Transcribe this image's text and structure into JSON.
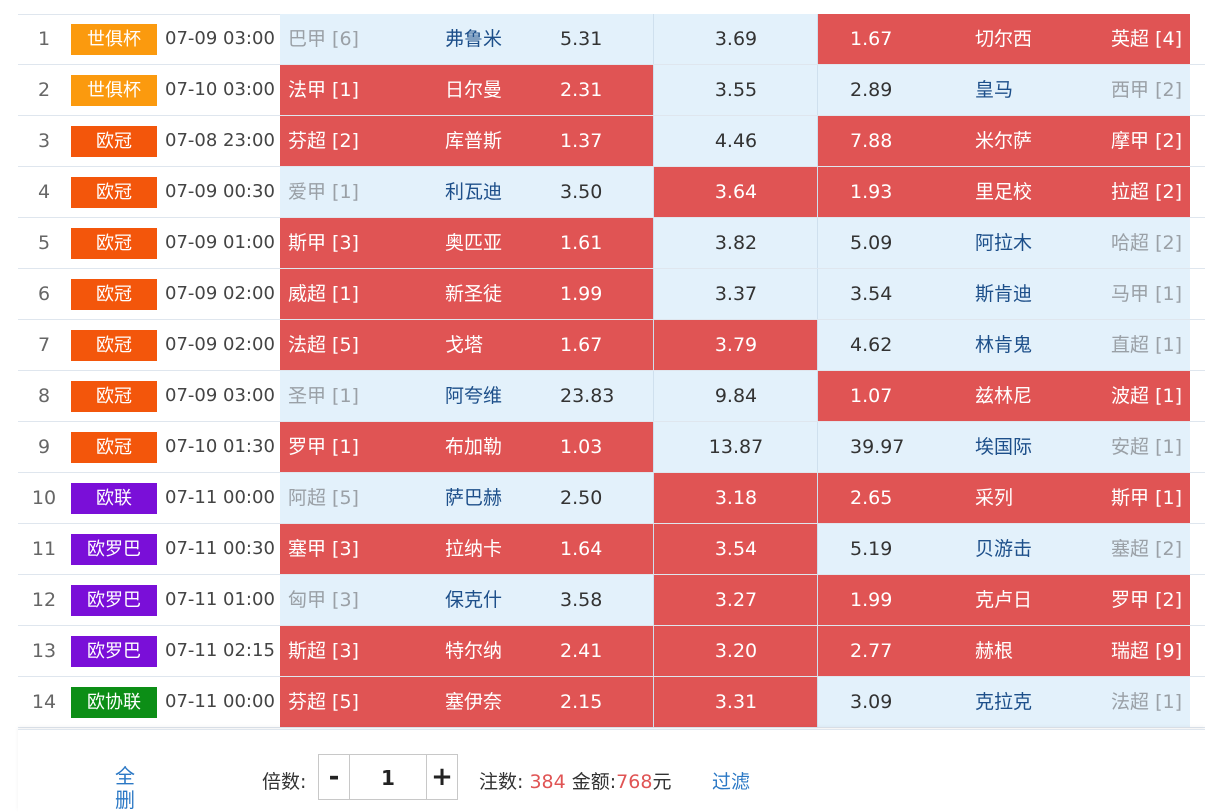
{
  "rows": [
    {
      "num": "1",
      "comp": "世俱杯",
      "comp_color": "#fb9a0e",
      "time": "07-09 03:00",
      "home_league": "巴甲 [6]",
      "home_team": "弗鲁米",
      "home_odds": "5.31",
      "draw_odds": "3.69",
      "away_odds": "1.67",
      "away_team": "切尔西",
      "away_league": "英超 [4]",
      "z1": "light",
      "z2": "light",
      "z3": "red"
    },
    {
      "num": "2",
      "comp": "世俱杯",
      "comp_color": "#fb9a0e",
      "time": "07-10 03:00",
      "home_league": "法甲 [1]",
      "home_team": "日尔曼",
      "home_odds": "2.31",
      "draw_odds": "3.55",
      "away_odds": "2.89",
      "away_team": "皇马",
      "away_league": "西甲 [2]",
      "z1": "red",
      "z2": "light",
      "z3": "light"
    },
    {
      "num": "3",
      "comp": "欧冠",
      "comp_color": "#f3560b",
      "time": "07-08 23:00",
      "home_league": "芬超 [2]",
      "home_team": "库普斯",
      "home_odds": "1.37",
      "draw_odds": "4.46",
      "away_odds": "7.88",
      "away_team": "米尔萨",
      "away_league": "摩甲 [2]",
      "z1": "red",
      "z2": "light",
      "z3": "red"
    },
    {
      "num": "4",
      "comp": "欧冠",
      "comp_color": "#f3560b",
      "time": "07-09 00:30",
      "home_league": "爱甲 [1]",
      "home_team": "利瓦迪",
      "home_odds": "3.50",
      "draw_odds": "3.64",
      "away_odds": "1.93",
      "away_team": "里足校",
      "away_league": "拉超 [2]",
      "z1": "light",
      "z2": "red",
      "z3": "red"
    },
    {
      "num": "5",
      "comp": "欧冠",
      "comp_color": "#f3560b",
      "time": "07-09 01:00",
      "home_league": "斯甲 [3]",
      "home_team": "奥匹亚",
      "home_odds": "1.61",
      "draw_odds": "3.82",
      "away_odds": "5.09",
      "away_team": "阿拉木",
      "away_league": "哈超 [2]",
      "z1": "red",
      "z2": "light",
      "z3": "light"
    },
    {
      "num": "6",
      "comp": "欧冠",
      "comp_color": "#f3560b",
      "time": "07-09 02:00",
      "home_league": "威超 [1]",
      "home_team": "新圣徒",
      "home_odds": "1.99",
      "draw_odds": "3.37",
      "away_odds": "3.54",
      "away_team": "斯肯迪",
      "away_league": "马甲 [1]",
      "z1": "red",
      "z2": "light",
      "z3": "light"
    },
    {
      "num": "7",
      "comp": "欧冠",
      "comp_color": "#f3560b",
      "time": "07-09 02:00",
      "home_league": "法超 [5]",
      "home_team": "戈塔",
      "home_odds": "1.67",
      "draw_odds": "3.79",
      "away_odds": "4.62",
      "away_team": "林肯鬼",
      "away_league": "直超 [1]",
      "z1": "red",
      "z2": "red",
      "z3": "light"
    },
    {
      "num": "8",
      "comp": "欧冠",
      "comp_color": "#f3560b",
      "time": "07-09 03:00",
      "home_league": "圣甲 [1]",
      "home_team": "阿夸维",
      "home_odds": "23.83",
      "draw_odds": "9.84",
      "away_odds": "1.07",
      "away_team": "兹林尼",
      "away_league": "波超 [1]",
      "z1": "light",
      "z2": "light",
      "z3": "red"
    },
    {
      "num": "9",
      "comp": "欧冠",
      "comp_color": "#f3560b",
      "time": "07-10 01:30",
      "home_league": "罗甲 [1]",
      "home_team": "布加勒",
      "home_odds": "1.03",
      "draw_odds": "13.87",
      "away_odds": "39.97",
      "away_team": "埃国际",
      "away_league": "安超 [1]",
      "z1": "red",
      "z2": "light",
      "z3": "light"
    },
    {
      "num": "10",
      "comp": "欧联",
      "comp_color": "#7a0fd8",
      "time": "07-11 00:00",
      "home_league": "阿超 [5]",
      "home_team": "萨巴赫",
      "home_odds": "2.50",
      "draw_odds": "3.18",
      "away_odds": "2.65",
      "away_team": "采列",
      "away_league": "斯甲 [1]",
      "z1": "light",
      "z2": "red",
      "z3": "red"
    },
    {
      "num": "11",
      "comp": "欧罗巴",
      "comp_color": "#7a0fd8",
      "time": "07-11 00:30",
      "home_league": "塞甲 [3]",
      "home_team": "拉纳卡",
      "home_odds": "1.64",
      "draw_odds": "3.54",
      "away_odds": "5.19",
      "away_team": "贝游击",
      "away_league": "塞超 [2]",
      "z1": "red",
      "z2": "red",
      "z3": "light"
    },
    {
      "num": "12",
      "comp": "欧罗巴",
      "comp_color": "#7a0fd8",
      "time": "07-11 01:00",
      "home_league": "匈甲 [3]",
      "home_team": "保克什",
      "home_odds": "3.58",
      "draw_odds": "3.27",
      "away_odds": "1.99",
      "away_team": "克卢日",
      "away_league": "罗甲 [2]",
      "z1": "light",
      "z2": "red",
      "z3": "red"
    },
    {
      "num": "13",
      "comp": "欧罗巴",
      "comp_color": "#7a0fd8",
      "time": "07-11 02:15",
      "home_league": "斯超 [3]",
      "home_team": "特尔纳",
      "home_odds": "2.41",
      "draw_odds": "3.20",
      "away_odds": "2.77",
      "away_team": "赫根",
      "away_league": "瑞超 [9]",
      "z1": "red",
      "z2": "red",
      "z3": "red"
    },
    {
      "num": "14",
      "comp": "欧协联",
      "comp_color": "#0c8e16",
      "time": "07-11 00:00",
      "home_league": "芬超 [5]",
      "home_team": "塞伊奈",
      "home_odds": "2.15",
      "draw_odds": "3.31",
      "away_odds": "3.09",
      "away_team": "克拉克",
      "away_league": "法超 [1]",
      "z1": "red",
      "z2": "red",
      "z3": "light"
    }
  ],
  "footer": {
    "clear_label": "全删",
    "multiplier_label": "倍数:",
    "minus": "-",
    "multiplier_value": "1",
    "plus": "+",
    "bets_label": "注数:",
    "bets_count": "384",
    "amount_label": "金额:",
    "amount_value": "768",
    "amount_unit": "元",
    "filter_label": "过滤"
  }
}
